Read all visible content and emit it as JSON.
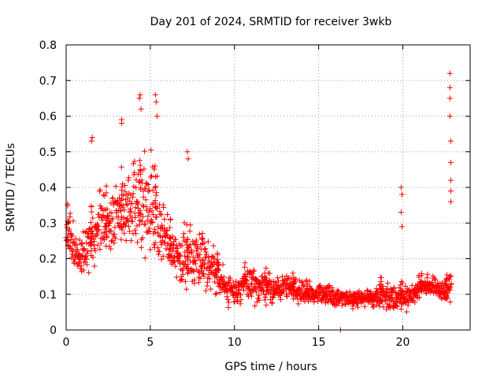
{
  "chart_data": {
    "type": "scatter",
    "title": "Day 201 of 2024, SRMTID for receiver 3wkb",
    "xlabel": "GPS time / hours",
    "ylabel": "SRMTID / TECUs",
    "xlim": [
      0,
      24
    ],
    "ylim": [
      0,
      0.8
    ],
    "xticks": [
      0,
      5,
      10,
      15,
      20
    ],
    "yticks": [
      0,
      0.1,
      0.2,
      0.3,
      0.4,
      0.5,
      0.6,
      0.7,
      0.8
    ],
    "xtick_labels": [
      "0",
      "5",
      "10",
      "15",
      "20"
    ],
    "ytick_labels": [
      "0",
      "0.1",
      "0.2",
      "0.3",
      "0.4",
      "0.5",
      "0.6",
      "0.7",
      "0.8"
    ],
    "grid": true,
    "marker": "+",
    "marker_color": "#ff0000",
    "series": [
      {
        "name": "SRMTID",
        "envelope": {
          "x": [
            0.0,
            0.3,
            0.7,
            1.0,
            1.5,
            2.0,
            2.5,
            3.0,
            3.5,
            4.0,
            4.5,
            5.0,
            5.5,
            6.0,
            6.5,
            7.0,
            7.5,
            8.0,
            8.5,
            9.0,
            9.5,
            10.0,
            10.5,
            11.0,
            11.5,
            12.0,
            12.5,
            13.0,
            13.5,
            14.0,
            14.5,
            15.0,
            15.5,
            16.0,
            16.5,
            17.0,
            17.5,
            18.0,
            18.5,
            19.0,
            19.5,
            20.0,
            20.5,
            21.0,
            21.5,
            22.0,
            22.5,
            22.9
          ],
          "low": [
            0.18,
            0.15,
            0.12,
            0.14,
            0.15,
            0.18,
            0.2,
            0.22,
            0.18,
            0.16,
            0.15,
            0.16,
            0.15,
            0.13,
            0.12,
            0.08,
            0.1,
            0.1,
            0.09,
            0.08,
            0.06,
            0.05,
            0.06,
            0.05,
            0.06,
            0.06,
            0.06,
            0.07,
            0.07,
            0.06,
            0.06,
            0.06,
            0.06,
            0.05,
            0.06,
            0.05,
            0.06,
            0.06,
            0.05,
            0.04,
            0.04,
            0.04,
            0.05,
            0.08,
            0.09,
            0.08,
            0.06,
            0.05
          ],
          "high": [
            0.38,
            0.35,
            0.28,
            0.3,
            0.35,
            0.42,
            0.4,
            0.45,
            0.48,
            0.5,
            0.55,
            0.55,
            0.45,
            0.35,
            0.3,
            0.32,
            0.3,
            0.3,
            0.28,
            0.22,
            0.18,
            0.16,
            0.2,
            0.2,
            0.18,
            0.18,
            0.16,
            0.17,
            0.16,
            0.15,
            0.14,
            0.15,
            0.14,
            0.13,
            0.12,
            0.12,
            0.12,
            0.12,
            0.14,
            0.16,
            0.14,
            0.15,
            0.14,
            0.16,
            0.17,
            0.16,
            0.15,
            0.2
          ]
        },
        "outliers": [
          {
            "x": 1.5,
            "y": 0.53
          },
          {
            "x": 1.55,
            "y": 0.54
          },
          {
            "x": 3.3,
            "y": 0.58
          },
          {
            "x": 3.3,
            "y": 0.59
          },
          {
            "x": 4.35,
            "y": 0.65
          },
          {
            "x": 4.4,
            "y": 0.66
          },
          {
            "x": 4.45,
            "y": 0.62
          },
          {
            "x": 5.3,
            "y": 0.66
          },
          {
            "x": 5.35,
            "y": 0.64
          },
          {
            "x": 5.4,
            "y": 0.6
          },
          {
            "x": 7.2,
            "y": 0.5
          },
          {
            "x": 7.25,
            "y": 0.48
          },
          {
            "x": 16.3,
            "y": 0.0
          },
          {
            "x": 19.9,
            "y": 0.4
          },
          {
            "x": 19.95,
            "y": 0.38
          },
          {
            "x": 19.9,
            "y": 0.33
          },
          {
            "x": 19.95,
            "y": 0.29
          },
          {
            "x": 22.8,
            "y": 0.72
          },
          {
            "x": 22.8,
            "y": 0.68
          },
          {
            "x": 22.8,
            "y": 0.65
          },
          {
            "x": 22.8,
            "y": 0.6
          },
          {
            "x": 22.85,
            "y": 0.53
          },
          {
            "x": 22.85,
            "y": 0.47
          },
          {
            "x": 22.85,
            "y": 0.42
          },
          {
            "x": 22.85,
            "y": 0.39
          },
          {
            "x": 22.85,
            "y": 0.36
          }
        ]
      }
    ]
  }
}
